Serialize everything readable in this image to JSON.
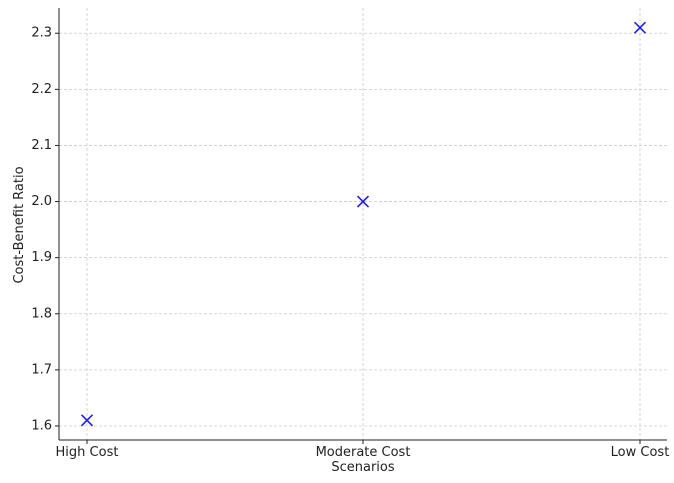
{
  "chart_data": {
    "type": "scatter",
    "title": "",
    "xlabel": "Scenarios",
    "ylabel": "Cost-Benefit Ratio",
    "categories": [
      "High Cost",
      "Moderate Cost",
      "Low Cost"
    ],
    "values": [
      1.61,
      2.0,
      2.31
    ],
    "ylim": [
      1.575,
      2.345
    ],
    "yticks": [
      "1.6",
      "1.7",
      "1.8",
      "1.9",
      "2.0",
      "2.1",
      "2.2",
      "2.3"
    ],
    "grid": true,
    "marker": "x",
    "marker_color": "#1f1fe0",
    "grid_color": "#cccccc"
  }
}
